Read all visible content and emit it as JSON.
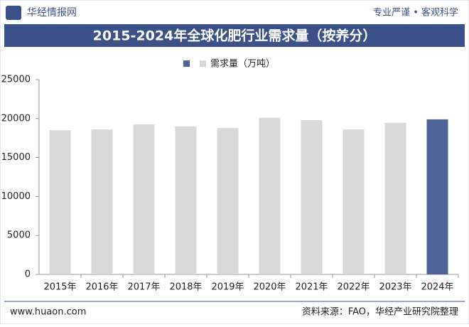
{
  "header": {
    "logo": "华经情报网",
    "slogan": "专业严谨 • 客观科学"
  },
  "footer": {
    "site": "www.huaon.com",
    "source": "资料来源：FAO，华经产业研究院整理"
  },
  "chart_data": {
    "type": "bar",
    "title": "2015-2024年全球化肥行业需求量（按养分）",
    "categories": [
      "2015年",
      "2016年",
      "2017年",
      "2018年",
      "2019年",
      "2020年",
      "2021年",
      "2022年",
      "2023年",
      "2024年"
    ],
    "series": [
      {
        "name": "需求量（万吨）",
        "values": [
          18500,
          18600,
          19250,
          19000,
          18800,
          20100,
          19800,
          18600,
          19450,
          19900
        ],
        "colors": [
          "#d9d9d9",
          "#d9d9d9",
          "#d9d9d9",
          "#d9d9d9",
          "#d9d9d9",
          "#d9d9d9",
          "#d9d9d9",
          "#d9d9d9",
          "#d9d9d9",
          "#4f6598"
        ]
      }
    ],
    "ylim": [
      0,
      25000
    ],
    "yticks": [
      0,
      5000,
      10000,
      15000,
      20000,
      25000
    ],
    "grid": false
  }
}
